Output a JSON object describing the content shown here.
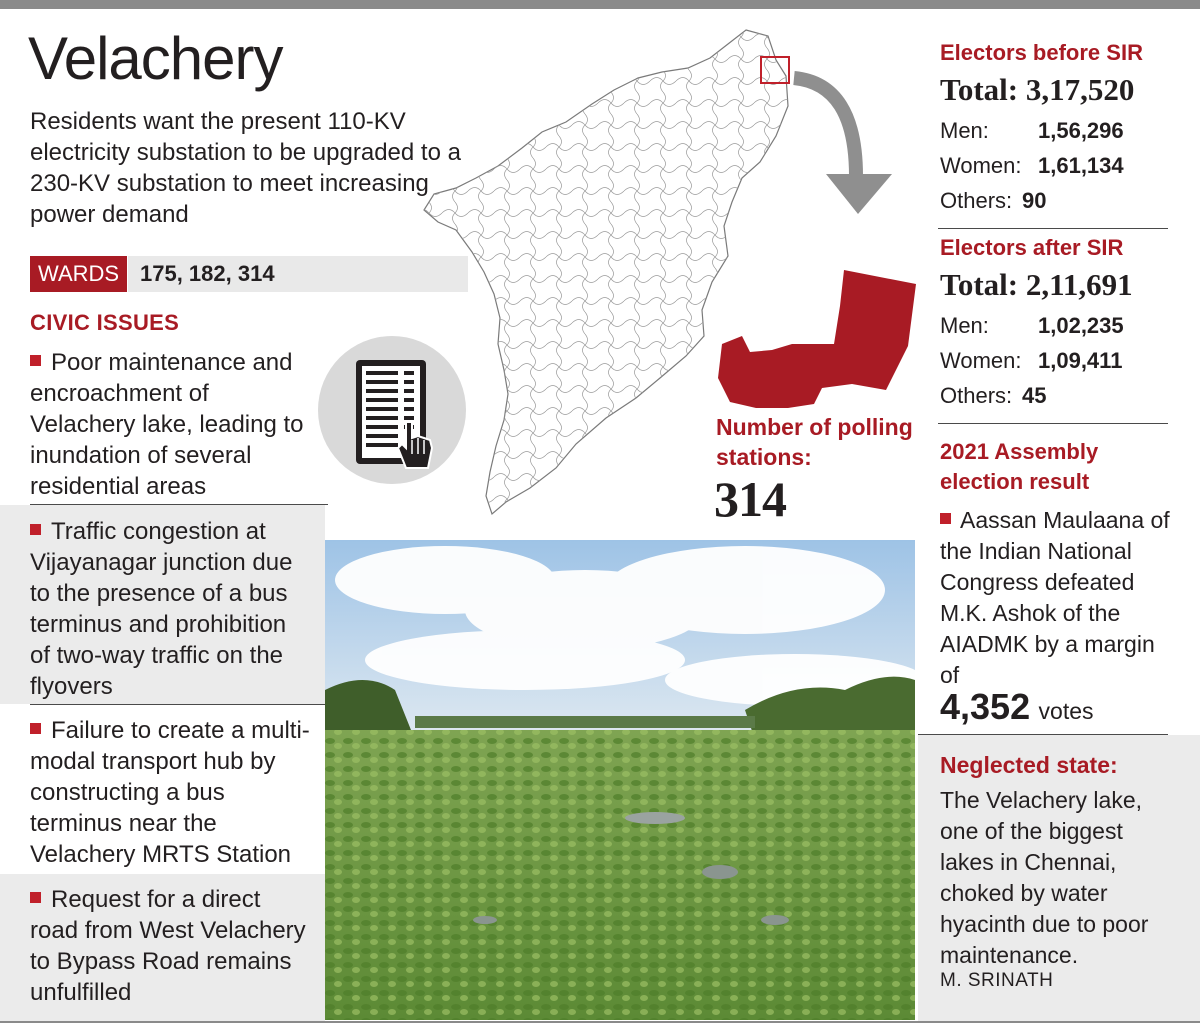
{
  "title": "Velachery",
  "intro": "Residents want the present 110-KV electricity substation to be upgraded to a 230-KV substation to meet increasing power demand",
  "wards": {
    "label": "WARDS",
    "values": "175, 182, 314"
  },
  "civic_issues": {
    "heading": "CIVIC ISSUES",
    "items": [
      "Poor maintenance and encroachment of Velachery lake, leading to inundation of several residential areas",
      "Traffic congestion at Vijayanagar junction due to the presence of a bus terminus and prohibition of two-way traffic on the flyovers",
      "Failure to create a multi-modal transport hub by constructing a bus terminus near the Velachery MRTS Station",
      "Request for a direct road from West Velachery to Bypass Road remains unfulfilled"
    ]
  },
  "polling": {
    "label": "Number of polling stations:",
    "value": "314"
  },
  "electors_before": {
    "heading": "Electors before SIR",
    "total_label": "Total:",
    "total": "3,17,520",
    "rows": [
      {
        "label": "Men:",
        "value": "1,56,296"
      },
      {
        "label": "Women:",
        "value": "1,61,134"
      },
      {
        "label": "Others:",
        "value": "90"
      }
    ]
  },
  "electors_after": {
    "heading": "Electors after SIR",
    "total_label": "Total:",
    "total": "2,11,691",
    "rows": [
      {
        "label": "Men:",
        "value": "1,02,235"
      },
      {
        "label": "Women:",
        "value": "1,09,411"
      },
      {
        "label": "Others:",
        "value": "45"
      }
    ]
  },
  "election_result": {
    "heading": "2021 Assembly election result",
    "text": "Aassan Maulaana of the Indian National Congress defeated M.K. Ashok of the AIADMK by a margin of",
    "margin": "4,352",
    "margin_unit": "votes"
  },
  "photo_caption": {
    "heading": "Neglected state:",
    "text": "The Velachery lake, one of the biggest lakes in Chennai, choked by water hyacinth due to poor maintenance.",
    "credit": "M. SRINATH"
  },
  "colors": {
    "accent": "#a81b24",
    "rule": "#8a8a8a",
    "panel": "#ebebeb"
  }
}
